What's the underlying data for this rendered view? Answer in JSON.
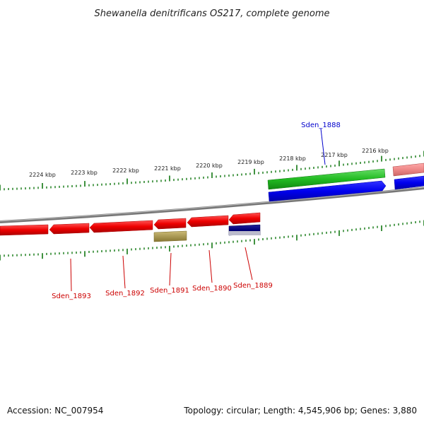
{
  "title": "Shewanella denitrificans OS217, complete genome",
  "footer": {
    "accession": "Accession: NC_007954",
    "summary": "Topology: circular; Length: 4,545,906 bp; Genes: 3,880"
  },
  "ruler": {
    "tick_labels": [
      "2224 kbp",
      "2223 kbp",
      "2222 kbp",
      "2221 kbp",
      "2220 kbp",
      "2219 kbp",
      "2218 kbp",
      "2217 kbp",
      "2216 kbp"
    ]
  },
  "gene_labels": {
    "sden_1888": "Sden_1888",
    "sden_1889": "Sden_1889",
    "sden_1890": "Sden_1890",
    "sden_1891": "Sden_1891",
    "sden_1892": "Sden_1892",
    "sden_1893": "Sden_1893"
  },
  "colors": {
    "forward_gene_label": "#0000cc",
    "reverse_gene_label": "#cc0000",
    "cds_forward": "#0000ee",
    "cds_reverse": "#ee0000",
    "gene_green": "#22bb22",
    "gene_pink": "#ee8888",
    "gene_olive": "#aa9955",
    "gene_navy": "#000077",
    "tick": "#117711",
    "backbone": "#888888"
  }
}
